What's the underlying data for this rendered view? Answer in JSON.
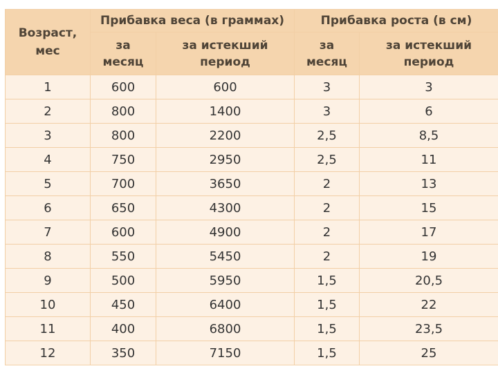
{
  "table": {
    "age_header": "Возраст, мес",
    "weight_group": "Прибавка веса (в граммах)",
    "height_group": "Прибавка роста (в см)",
    "sub_per_month": "за месяц",
    "sub_cumulative": "за истекший период",
    "columns": [
      "age",
      "weight_per_month",
      "weight_cumulative",
      "height_per_month",
      "height_cumulative"
    ],
    "rows": [
      [
        "1",
        "600",
        "600",
        "3",
        "3"
      ],
      [
        "2",
        "800",
        "1400",
        "3",
        "6"
      ],
      [
        "3",
        "800",
        "2200",
        "2,5",
        "8,5"
      ],
      [
        "4",
        "750",
        "2950",
        "2,5",
        "11"
      ],
      [
        "5",
        "700",
        "3650",
        "2",
        "13"
      ],
      [
        "6",
        "650",
        "4300",
        "2",
        "15"
      ],
      [
        "7",
        "600",
        "4900",
        "2",
        "17"
      ],
      [
        "8",
        "550",
        "5450",
        "2",
        "19"
      ],
      [
        "9",
        "500",
        "5950",
        "1,5",
        "20,5"
      ],
      [
        "10",
        "450",
        "6400",
        "1,5",
        "22"
      ],
      [
        "11",
        "400",
        "6800",
        "1,5",
        "23,5"
      ],
      [
        "12",
        "350",
        "7150",
        "1,5",
        "25"
      ]
    ]
  },
  "colors": {
    "header_bg": "#f5d5ae",
    "cell_bg": "#fdf1e4",
    "border": "#f2cfa6",
    "header_text": "#4f4437"
  }
}
